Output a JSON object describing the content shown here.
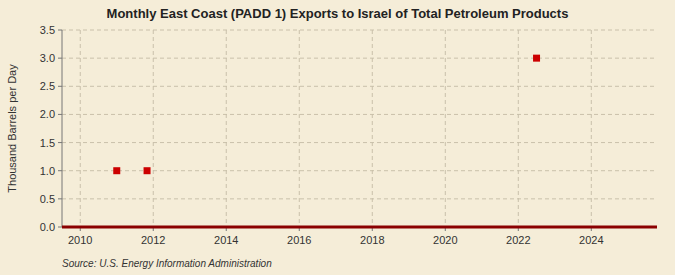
{
  "chart_data": {
    "type": "scatter",
    "title": "Monthly East Coast (PADD 1) Exports to Israel of Total Petroleum Products",
    "y_label": "Thousand Barrels per Day",
    "source": "Source: U.S. Energy Information Administration",
    "x": [
      2011.0,
      2011.83,
      2022.5
    ],
    "values": [
      1.0,
      1.0,
      3.0
    ],
    "color": "#cc0000",
    "marker": "square",
    "xlim": [
      2009.5,
      2025.8
    ],
    "ylim": [
      0,
      3.5
    ],
    "xticks": [
      2010,
      2012,
      2014,
      2016,
      2018,
      2020,
      2022,
      2024
    ],
    "yticks": [
      {
        "value": 0.0,
        "label": "0.0"
      },
      0.5,
      {
        "value": 1.0,
        "label": "1.0"
      },
      1.5,
      {
        "value": 2.0,
        "label": "2.0"
      },
      2.5,
      {
        "value": 3.0,
        "label": "3.0"
      },
      3.5
    ],
    "grid": true
  }
}
